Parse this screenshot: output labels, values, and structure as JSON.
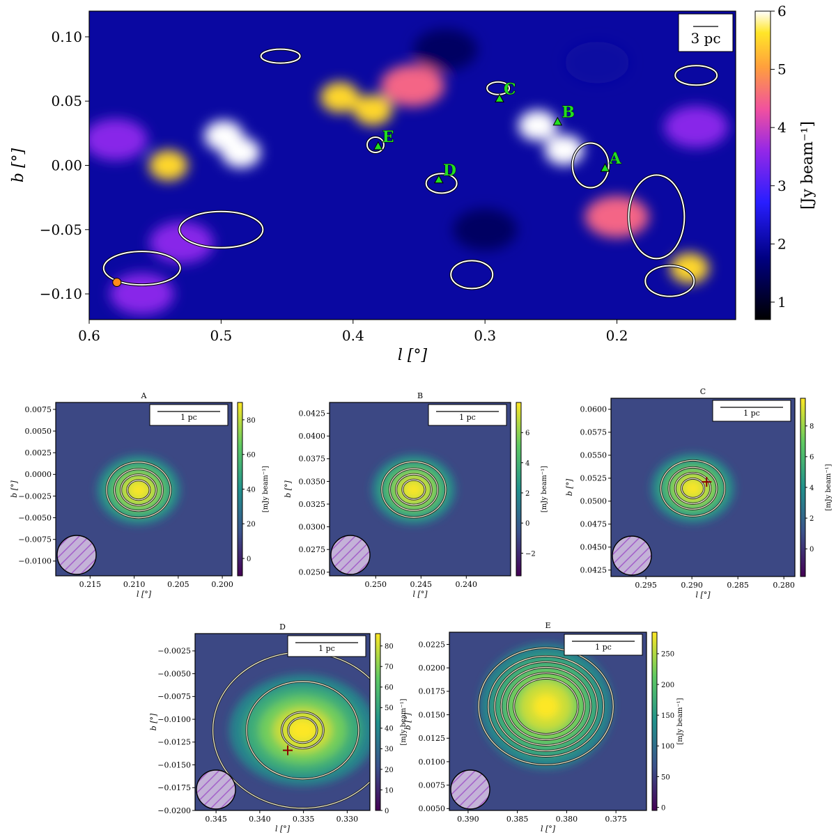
{
  "chart_data": [
    {
      "panel": "main",
      "type": "heatmap",
      "title": "",
      "xlabel": "l [°]",
      "ylabel": "b [°]",
      "xlim": [
        0.6,
        0.11
      ],
      "ylim": [
        -0.12,
        0.12
      ],
      "xticks": [
        0.6,
        0.5,
        0.4,
        0.3,
        0.2
      ],
      "xtick_labels": [
        "0.6",
        "0.5",
        "0.4",
        "0.3",
        "0.2"
      ],
      "yticks": [
        0.1,
        0.05,
        0.0,
        -0.05,
        -0.1
      ],
      "ytick_labels": [
        "0.10",
        "0.05",
        "0.00",
        "−0.05",
        "−0.10"
      ],
      "colormap": "gnuplot2",
      "colorbar": {
        "label": "[Jy beam⁻¹]",
        "range": [
          0.7,
          6
        ],
        "ticks": [
          1,
          2,
          3,
          4,
          5,
          6
        ],
        "tick_labels": [
          "1",
          "2",
          "3",
          "4",
          "5",
          "6"
        ]
      },
      "scalebar": "3 pc",
      "contour_color": "#ffffff",
      "marker_color": "#22dd22",
      "sources": [
        {
          "label": "A",
          "l": 0.209,
          "b": -0.002
        },
        {
          "label": "B",
          "l": 0.245,
          "b": 0.034
        },
        {
          "label": "C",
          "l": 0.289,
          "b": 0.052
        },
        {
          "label": "D",
          "l": 0.335,
          "b": -0.011
        },
        {
          "label": "E",
          "l": 0.381,
          "b": 0.015
        }
      ],
      "bright_regions": [
        {
          "l": 0.485,
          "b": 0.01,
          "value": 6.0
        },
        {
          "l": 0.498,
          "b": 0.023,
          "value": 6.0
        },
        {
          "l": 0.54,
          "b": 0.0,
          "value": 5.5
        },
        {
          "l": 0.41,
          "b": 0.053,
          "value": 5.5
        },
        {
          "l": 0.385,
          "b": 0.043,
          "value": 5.5
        },
        {
          "l": 0.26,
          "b": 0.031,
          "value": 6.0
        },
        {
          "l": 0.24,
          "b": 0.012,
          "value": 6.0
        },
        {
          "l": 0.145,
          "b": -0.08,
          "value": 5.5
        },
        {
          "l": 0.355,
          "b": 0.062,
          "value": 4.5
        },
        {
          "l": 0.2,
          "b": -0.04,
          "value": 4.5
        },
        {
          "l": 0.58,
          "b": 0.02,
          "value": 3.5
        },
        {
          "l": 0.53,
          "b": -0.06,
          "value": 3.5
        },
        {
          "l": 0.14,
          "b": 0.03,
          "value": 3.5
        },
        {
          "l": 0.56,
          "b": -0.1,
          "value": 3.5
        },
        {
          "l": 0.215,
          "b": 0.08,
          "value": 2.0
        },
        {
          "l": 0.33,
          "b": 0.09,
          "value": 1.5
        },
        {
          "l": 0.3,
          "b": -0.05,
          "value": 1.5
        }
      ],
      "beam": {
        "l": 0.579,
        "b": -0.091,
        "color": "#ff8c1a"
      }
    },
    {
      "panel": "A",
      "type": "heatmap",
      "title": "A",
      "xlabel": "l [°]",
      "ylabel": "b [°]",
      "xlim": [
        0.2189,
        0.1989
      ],
      "ylim": [
        -0.0117,
        0.0083
      ],
      "xticks": [
        0.215,
        0.21,
        0.205,
        0.2
      ],
      "xtick_labels": [
        "0.215",
        "0.210",
        "0.205",
        "0.200"
      ],
      "yticks": [
        0.0075,
        0.005,
        0.0025,
        0.0,
        -0.0025,
        -0.005,
        -0.0075,
        -0.01
      ],
      "ytick_labels": [
        "0.0075",
        "0.0050",
        "0.0025",
        "0.0000",
        "−0.0025",
        "−0.0050",
        "−0.0075",
        "−0.0100"
      ],
      "colormap": "viridis",
      "scalebar": "1 pc",
      "colorbar": {
        "label": "[mJy beam⁻¹]",
        "range": [
          -10,
          90
        ],
        "ticks": [
          0,
          20,
          40,
          60,
          80
        ],
        "tick_labels": [
          "0",
          "20",
          "40",
          "60",
          "80"
        ]
      },
      "peak": {
        "l": 0.2095,
        "b": -0.0018,
        "value": 88
      }
    },
    {
      "panel": "B",
      "type": "heatmap",
      "title": "B",
      "xlabel": "l [°]",
      "ylabel": "b [°]",
      "xlim": [
        0.2551,
        0.2351
      ],
      "ylim": [
        0.0246,
        0.0437
      ],
      "xticks": [
        0.25,
        0.245,
        0.24
      ],
      "xtick_labels": [
        "0.250",
        "0.245",
        "0.240"
      ],
      "yticks": [
        0.0425,
        0.04,
        0.0375,
        0.035,
        0.0325,
        0.03,
        0.0275,
        0.025
      ],
      "ytick_labels": [
        "0.0425",
        "0.0400",
        "0.0375",
        "0.0350",
        "0.0325",
        "0.0300",
        "0.0275",
        "0.0250"
      ],
      "colormap": "viridis",
      "scalebar": "1 pc",
      "colorbar": {
        "label": "[mJy beam⁻¹]",
        "range": [
          -3.5,
          8
        ],
        "ticks": [
          -2,
          0,
          2,
          4,
          6
        ],
        "tick_labels": [
          "−2",
          "0",
          "2",
          "4",
          "6"
        ]
      },
      "peak": {
        "l": 0.2458,
        "b": 0.0341,
        "value": 7.5
      }
    },
    {
      "panel": "C",
      "type": "heatmap",
      "title": "C",
      "xlabel": "l [°]",
      "ylabel": "b [°]",
      "xlim": [
        0.2988,
        0.2788
      ],
      "ylim": [
        0.0418,
        0.0612
      ],
      "xticks": [
        0.295,
        0.29,
        0.285,
        0.28
      ],
      "xtick_labels": [
        "0.295",
        "0.290",
        "0.285",
        "0.280"
      ],
      "yticks": [
        0.06,
        0.0575,
        0.055,
        0.0525,
        0.05,
        0.0475,
        0.045,
        0.0425
      ],
      "ytick_labels": [
        "0.0600",
        "0.0575",
        "0.0550",
        "0.0525",
        "0.0500",
        "0.0475",
        "0.0450",
        "0.0425"
      ],
      "colormap": "viridis",
      "scalebar": "1 pc",
      "colorbar": {
        "label": "[mJy beam⁻¹]",
        "range": [
          -1.8,
          9.8
        ],
        "ticks": [
          0,
          2,
          4,
          6,
          8
        ],
        "tick_labels": [
          "0",
          "2",
          "4",
          "6",
          "8"
        ]
      },
      "peak": {
        "l": 0.2899,
        "b": 0.0514,
        "value": 9.5
      },
      "cross": {
        "l": 0.2884,
        "b": 0.0521
      }
    },
    {
      "panel": "D",
      "type": "heatmap",
      "title": "D",
      "xlabel": "l [°]",
      "ylabel": "b [°]",
      "xlim": [
        0.3474,
        0.3274
      ],
      "ylim": [
        -0.02,
        -0.0006
      ],
      "xticks": [
        0.345,
        0.34,
        0.335,
        0.33
      ],
      "xtick_labels": [
        "0.345",
        "0.340",
        "0.335",
        "0.330"
      ],
      "yticks": [
        -0.0025,
        -0.005,
        -0.0075,
        -0.01,
        -0.0125,
        -0.015,
        -0.0175,
        -0.02
      ],
      "ytick_labels": [
        "−0.0025",
        "−0.0050",
        "−0.0075",
        "−0.0100",
        "−0.0125",
        "−0.0150",
        "−0.0175",
        "−0.0200"
      ],
      "colormap": "viridis",
      "scalebar": "1 pc",
      "colorbar": {
        "label": "[mJy beam⁻¹]",
        "range": [
          0,
          86
        ],
        "ticks": [
          0,
          10,
          20,
          30,
          40,
          50,
          60,
          70,
          80
        ],
        "tick_labels": [
          "0",
          "10",
          "20",
          "30",
          "40",
          "50",
          "60",
          "70",
          "80"
        ]
      },
      "peak": {
        "l": 0.3351,
        "b": -0.0112,
        "value": 85
      },
      "cross": {
        "l": 0.3368,
        "b": -0.0134
      }
    },
    {
      "panel": "E",
      "type": "heatmap",
      "title": "E",
      "xlabel": "l [°]",
      "ylabel": "b [°]",
      "xlim": [
        0.3919,
        0.3719
      ],
      "ylim": [
        0.0048,
        0.0238
      ],
      "xticks": [
        0.39,
        0.385,
        0.38,
        0.375
      ],
      "xtick_labels": [
        "0.390",
        "0.385",
        "0.380",
        "0.375"
      ],
      "yticks": [
        0.0225,
        0.02,
        0.0175,
        0.015,
        0.0125,
        0.01,
        0.0075,
        0.005
      ],
      "ytick_labels": [
        "0.0225",
        "0.0200",
        "0.0175",
        "0.0150",
        "0.0125",
        "0.0100",
        "0.0075",
        "0.0050"
      ],
      "colormap": "viridis",
      "scalebar": "1 pc",
      "colorbar": {
        "label": "[mJy beam⁻¹]",
        "range": [
          -5,
          285
        ],
        "ticks": [
          0,
          50,
          100,
          150,
          200,
          250
        ],
        "tick_labels": [
          "0",
          "50",
          "100",
          "150",
          "200",
          "250"
        ]
      },
      "peak": {
        "l": 0.3821,
        "b": 0.0159,
        "value": 280
      }
    }
  ]
}
